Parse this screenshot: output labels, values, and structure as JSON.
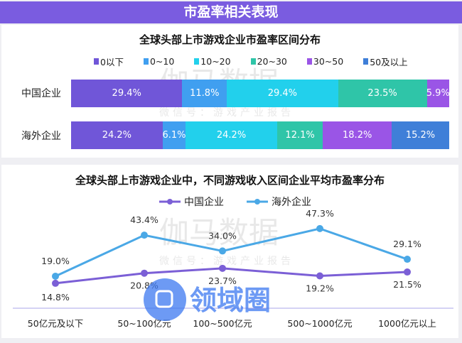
{
  "header": {
    "title": "市盈率相关表现"
  },
  "watermark": {
    "main": "伽马数据",
    "sub": "微信号：游戏产业报告",
    "logo": "领域圈"
  },
  "colors": {
    "header": "#7a5ce0",
    "china": "#7b5fd6",
    "overseas": "#4aa8e6"
  },
  "chart_data": [
    {
      "type": "bar",
      "stacked": true,
      "orientation": "horizontal",
      "title": "全球头部上市游戏企业市盈率区间分布",
      "categories": [
        "中国企业",
        "海外企业"
      ],
      "legend_position": "top",
      "series": [
        {
          "name": "0以下",
          "color": "#7056d8",
          "values": [
            29.4,
            24.2
          ],
          "labels": [
            "29.4%",
            "24.2%"
          ]
        },
        {
          "name": "0~10",
          "color": "#409ff0",
          "values": [
            11.8,
            6.1
          ],
          "labels": [
            "11.8%",
            "6.1%"
          ]
        },
        {
          "name": "10~20",
          "color": "#22d0ec",
          "values": [
            29.4,
            24.2
          ],
          "labels": [
            "29.4%",
            "24.2%"
          ]
        },
        {
          "name": "20~30",
          "color": "#2fc5a8",
          "values": [
            23.5,
            12.1
          ],
          "labels": [
            "23.5%",
            "12.1%"
          ]
        },
        {
          "name": "30~50",
          "color": "#9a55e6",
          "values": [
            5.9,
            18.2
          ],
          "labels": [
            "5.9%",
            "18.2%"
          ]
        },
        {
          "name": "50及以上",
          "color": "#3f7fd8",
          "values": [
            0,
            15.2
          ],
          "labels": [
            "",
            "15.2%"
          ]
        }
      ]
    },
    {
      "type": "line",
      "title": "全球头部上市游戏企业中，不同游戏收入区间企业平均市盈率分布",
      "categories": [
        "50亿元及以下",
        "50~100亿元",
        "100~500亿元",
        "500~1000亿元",
        "1000亿元以上"
      ],
      "ylim": [
        0,
        50
      ],
      "grid": false,
      "legend_position": "top",
      "series": [
        {
          "name": "中国企业",
          "color": "#7b5fd6",
          "values": [
            14.8,
            20.8,
            23.7,
            19.2,
            21.5
          ],
          "labels": [
            "14.8%",
            "20.8%",
            "23.7%",
            "19.2%",
            "21.5%"
          ]
        },
        {
          "name": "海外企业",
          "color": "#4aa8e6",
          "values": [
            19.0,
            43.4,
            34.0,
            47.3,
            29.1
          ],
          "labels": [
            "19.0%",
            "43.4%",
            "34.0%",
            "47.3%",
            "29.1%"
          ]
        }
      ]
    }
  ]
}
